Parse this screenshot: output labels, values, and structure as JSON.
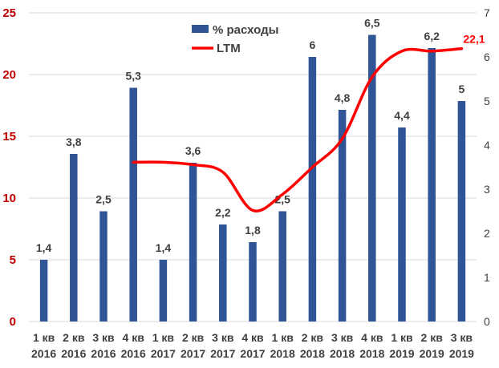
{
  "chart_data": {
    "type": "bar",
    "categories": [
      [
        "1 кв",
        "2016"
      ],
      [
        "2 кв",
        "2016"
      ],
      [
        "3 кв",
        "2016"
      ],
      [
        "4 кв",
        "2016"
      ],
      [
        "1 кв",
        "2017"
      ],
      [
        "2 кв",
        "2017"
      ],
      [
        "3 кв",
        "2017"
      ],
      [
        "4 кв",
        "2017"
      ],
      [
        "1 кв",
        "2018"
      ],
      [
        "2 кв",
        "2018"
      ],
      [
        "3 кв",
        "2018"
      ],
      [
        "4 кв",
        "2018"
      ],
      [
        "1 кв",
        "2019"
      ],
      [
        "2 кв",
        "2019"
      ],
      [
        "3 кв",
        "2019"
      ]
    ],
    "series": [
      {
        "name": "% расходы",
        "type": "bar",
        "axis": "right",
        "color": "#2f5597",
        "values": [
          1.4,
          3.8,
          2.5,
          5.3,
          1.4,
          3.6,
          2.2,
          1.8,
          2.5,
          6,
          4.8,
          6.5,
          4.4,
          6.2,
          5
        ],
        "labels": [
          "1,4",
          "3,8",
          "2,5",
          "5,3",
          "1,4",
          "3,6",
          "2,2",
          "1,8",
          "2,5",
          "6",
          "4,8",
          "6,5",
          "4,4",
          "6,2",
          "5"
        ]
      },
      {
        "name": "LTM",
        "type": "line",
        "axis": "left",
        "color": "#ff0000",
        "values": [
          null,
          null,
          null,
          12.9,
          12.9,
          12.7,
          12.1,
          9.0,
          10.3,
          12.5,
          14.8,
          19.8,
          21.9,
          21.9,
          22.1
        ],
        "end_label": "22,1"
      }
    ],
    "y_left": {
      "ylim": [
        0,
        25
      ],
      "ticks": [
        "0",
        "5",
        "10",
        "15",
        "20",
        "25"
      ],
      "tick_color": "#c00000"
    },
    "y_right": {
      "ylim": [
        0,
        7
      ],
      "ticks": [
        "0",
        "1",
        "2",
        "3",
        "4",
        "5",
        "6",
        "7"
      ]
    },
    "grid": true,
    "legend_position": "top-center"
  }
}
